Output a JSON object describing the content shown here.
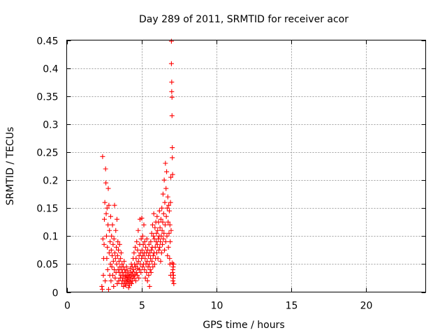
{
  "chart_data": {
    "type": "scatter",
    "title": "Day 289 of 2011, SRMTID for receiver acor",
    "xlabel": "GPS time / hours",
    "ylabel": "SRMTID / TECUs",
    "xlim": [
      0,
      24
    ],
    "ylim": [
      0,
      0.45
    ],
    "xticks": [
      0,
      5,
      10,
      15,
      20
    ],
    "xtick_labels": [
      "0",
      "5",
      "10",
      "15",
      "20"
    ],
    "yticks": [
      0,
      0.05,
      0.1,
      0.15,
      0.2,
      0.25,
      0.3,
      0.35,
      0.4,
      0.45
    ],
    "ytick_labels": [
      "0",
      "0.05",
      "0.1",
      "0.15",
      "0.2",
      "0.25",
      "0.3",
      "0.35",
      "0.4",
      "0.45"
    ],
    "grid": true,
    "marker": "+",
    "color": "#ff0000",
    "series": [
      {
        "name": "SRMTID",
        "points": [
          [
            2.35,
            0.01
          ],
          [
            2.38,
            0.005
          ],
          [
            2.4,
            0.242
          ],
          [
            2.42,
            0.095
          ],
          [
            2.45,
            0.03
          ],
          [
            2.47,
            0.06
          ],
          [
            2.5,
            0.085
          ],
          [
            2.52,
            0.13
          ],
          [
            2.55,
            0.16
          ],
          [
            2.57,
            0.02
          ],
          [
            2.6,
            0.22
          ],
          [
            2.62,
            0.195
          ],
          [
            2.64,
            0.14
          ],
          [
            2.66,
            0.1
          ],
          [
            2.68,
            0.06
          ],
          [
            2.7,
            0.15
          ],
          [
            2.72,
            0.08
          ],
          [
            2.74,
            0.04
          ],
          [
            2.76,
            0.12
          ],
          [
            2.78,
            0.185
          ],
          [
            2.8,
            0.005
          ],
          [
            2.82,
            0.155
          ],
          [
            2.84,
            0.07
          ],
          [
            2.86,
            0.11
          ],
          [
            2.88,
            0.03
          ],
          [
            2.9,
            0.09
          ],
          [
            2.92,
            0.05
          ],
          [
            2.94,
            0.135
          ],
          [
            2.96,
            0.02
          ],
          [
            2.98,
            0.075
          ],
          [
            3.0,
            0.1
          ],
          [
            3.02,
            0.045
          ],
          [
            3.04,
            0.065
          ],
          [
            3.06,
            0.12
          ],
          [
            3.08,
            0.03
          ],
          [
            3.1,
            0.085
          ],
          [
            3.12,
            0.055
          ],
          [
            3.14,
            0.01
          ],
          [
            3.16,
            0.095
          ],
          [
            3.18,
            0.04
          ],
          [
            3.2,
            0.155
          ],
          [
            3.22,
            0.07
          ],
          [
            3.24,
            0.025
          ],
          [
            3.26,
            0.06
          ],
          [
            3.28,
            0.11
          ],
          [
            3.3,
            0.035
          ],
          [
            3.32,
            0.08
          ],
          [
            3.34,
            0.05
          ],
          [
            3.36,
            0.13
          ],
          [
            3.38,
            0.015
          ],
          [
            3.4,
            0.065
          ],
          [
            3.42,
            0.09
          ],
          [
            3.44,
            0.04
          ],
          [
            3.46,
            0.075
          ],
          [
            3.48,
            0.02
          ],
          [
            3.5,
            0.055
          ],
          [
            3.52,
            0.035
          ],
          [
            3.54,
            0.085
          ],
          [
            3.56,
            0.045
          ],
          [
            3.58,
            0.025
          ],
          [
            3.6,
            0.06
          ],
          [
            3.62,
            0.03
          ],
          [
            3.64,
            0.07
          ],
          [
            3.66,
            0.04
          ],
          [
            3.68,
            0.015
          ],
          [
            3.7,
            0.05
          ],
          [
            3.72,
            0.025
          ],
          [
            3.74,
            0.035
          ],
          [
            3.76,
            0.02
          ],
          [
            3.78,
            0.045
          ],
          [
            3.8,
            0.01
          ],
          [
            3.82,
            0.03
          ],
          [
            3.84,
            0.055
          ],
          [
            3.86,
            0.02
          ],
          [
            3.88,
            0.04
          ],
          [
            3.9,
            0.015
          ],
          [
            3.92,
            0.028
          ],
          [
            3.94,
            0.035
          ],
          [
            3.96,
            0.012
          ],
          [
            3.98,
            0.025
          ],
          [
            4.0,
            0.045
          ],
          [
            4.02,
            0.018
          ],
          [
            4.04,
            0.03
          ],
          [
            4.06,
            0.022
          ],
          [
            4.08,
            0.038
          ],
          [
            4.1,
            0.015
          ],
          [
            4.12,
            0.026
          ],
          [
            4.14,
            0.008
          ],
          [
            4.16,
            0.032
          ],
          [
            4.18,
            0.02
          ],
          [
            4.2,
            0.012
          ],
          [
            4.22,
            0.028
          ],
          [
            4.24,
            0.042
          ],
          [
            4.26,
            0.018
          ],
          [
            4.28,
            0.035
          ],
          [
            4.3,
            0.024
          ],
          [
            4.32,
            0.05
          ],
          [
            4.34,
            0.015
          ],
          [
            4.36,
            0.03
          ],
          [
            4.38,
            0.045
          ],
          [
            4.4,
            0.02
          ],
          [
            4.42,
            0.036
          ],
          [
            4.44,
            0.06
          ],
          [
            4.46,
            0.028
          ],
          [
            4.48,
            0.04
          ],
          [
            4.5,
            0.07
          ],
          [
            4.52,
            0.025
          ],
          [
            4.54,
            0.05
          ],
          [
            4.56,
            0.032
          ],
          [
            4.58,
            0.08
          ],
          [
            4.6,
            0.045
          ],
          [
            4.62,
            0.02
          ],
          [
            4.64,
            0.06
          ],
          [
            4.66,
            0.035
          ],
          [
            4.68,
            0.09
          ],
          [
            4.7,
            0.05
          ],
          [
            4.72,
            0.03
          ],
          [
            4.74,
            0.075
          ],
          [
            4.76,
            0.042
          ],
          [
            4.78,
            0.11
          ],
          [
            4.8,
            0.055
          ],
          [
            4.82,
            0.025
          ],
          [
            4.84,
            0.065
          ],
          [
            4.86,
            0.04
          ],
          [
            4.88,
            0.085
          ],
          [
            4.9,
            0.13
          ],
          [
            4.92,
            0.05
          ],
          [
            4.94,
            0.07
          ],
          [
            4.96,
            0.035
          ],
          [
            4.98,
            0.095
          ],
          [
            5.0,
            0.06
          ],
          [
            5.02,
            0.132
          ],
          [
            5.04,
            0.075
          ],
          [
            5.06,
            0.045
          ],
          [
            5.08,
            0.1
          ],
          [
            5.1,
            0.065
          ],
          [
            5.12,
            0.085
          ],
          [
            5.14,
            0.05
          ],
          [
            5.16,
            0.12
          ],
          [
            5.18,
            0.07
          ],
          [
            5.2,
            0.04
          ],
          [
            5.22,
            0.09
          ],
          [
            5.24,
            0.06
          ],
          [
            5.26,
            0.025
          ],
          [
            5.28,
            0.08
          ],
          [
            5.3,
            0.05
          ],
          [
            5.32,
            0.07
          ],
          [
            5.34,
            0.035
          ],
          [
            5.36,
            0.095
          ],
          [
            5.38,
            0.055
          ],
          [
            5.4,
            0.02
          ],
          [
            5.42,
            0.075
          ],
          [
            5.44,
            0.045
          ],
          [
            5.46,
            0.065
          ],
          [
            5.48,
            0.03
          ],
          [
            5.5,
            0.085
          ],
          [
            5.52,
            0.05
          ],
          [
            5.54,
            0.01
          ],
          [
            5.56,
            0.07
          ],
          [
            5.58,
            0.04
          ],
          [
            5.6,
            0.06
          ],
          [
            5.62,
            0.09
          ],
          [
            5.64,
            0.035
          ],
          [
            5.66,
            0.075
          ],
          [
            5.68,
            0.105
          ],
          [
            5.7,
            0.055
          ],
          [
            5.72,
            0.08
          ],
          [
            5.74,
            0.12
          ],
          [
            5.76,
            0.045
          ],
          [
            5.78,
            0.065
          ],
          [
            5.8,
            0.1
          ],
          [
            5.82,
            0.14
          ],
          [
            5.84,
            0.07
          ],
          [
            5.86,
            0.095
          ],
          [
            5.88,
            0.05
          ],
          [
            5.9,
            0.115
          ],
          [
            5.92,
            0.08
          ],
          [
            5.94,
            0.06
          ],
          [
            5.96,
            0.125
          ],
          [
            5.98,
            0.09
          ],
          [
            6.0,
            0.105
          ],
          [
            6.02,
            0.07
          ],
          [
            6.04,
            0.135
          ],
          [
            6.06,
            0.085
          ],
          [
            6.08,
            0.11
          ],
          [
            6.1,
            0.06
          ],
          [
            6.12,
            0.095
          ],
          [
            6.14,
            0.125
          ],
          [
            6.16,
            0.075
          ],
          [
            6.18,
            0.1
          ],
          [
            6.2,
            0.145
          ],
          [
            6.22,
            0.08
          ],
          [
            6.24,
            0.115
          ],
          [
            6.26,
            0.09
          ],
          [
            6.28,
            0.055
          ],
          [
            6.3,
            0.13
          ],
          [
            6.32,
            0.1
          ],
          [
            6.34,
            0.07
          ],
          [
            6.36,
            0.15
          ],
          [
            6.38,
            0.11
          ],
          [
            6.4,
            0.085
          ],
          [
            6.42,
            0.125
          ],
          [
            6.44,
            0.175
          ],
          [
            6.46,
            0.095
          ],
          [
            6.48,
            0.14
          ],
          [
            6.5,
            0.105
          ],
          [
            6.52,
            0.2
          ],
          [
            6.54,
            0.075
          ],
          [
            6.56,
            0.16
          ],
          [
            6.58,
            0.12
          ],
          [
            6.6,
            0.23
          ],
          [
            6.62,
            0.09
          ],
          [
            6.64,
            0.185
          ],
          [
            6.66,
            0.135
          ],
          [
            6.68,
            0.215
          ],
          [
            6.7,
            0.1
          ],
          [
            6.72,
            0.15
          ],
          [
            6.74,
            0.065
          ],
          [
            6.76,
            0.17
          ],
          [
            6.78,
            0.125
          ],
          [
            6.8,
            0.08
          ],
          [
            6.82,
            0.155
          ],
          [
            6.84,
            0.105
          ],
          [
            6.86,
            0.145
          ],
          [
            6.88,
            0.06
          ],
          [
            6.9,
            0.12
          ],
          [
            6.92,
            0.09
          ],
          [
            6.94,
            0.16
          ],
          [
            6.96,
            0.205
          ],
          [
            6.98,
            0.11
          ],
          [
            7.0,
            0.448
          ],
          [
            7.0,
            0.408
          ],
          [
            7.02,
            0.375
          ],
          [
            7.02,
            0.358
          ],
          [
            7.04,
            0.348
          ],
          [
            7.04,
            0.315
          ],
          [
            7.06,
            0.258
          ],
          [
            7.06,
            0.24
          ],
          [
            7.08,
            0.21
          ],
          [
            7.1,
            0.04
          ],
          [
            7.12,
            0.025
          ],
          [
            7.14,
            0.05
          ],
          [
            7.16,
            0.015
          ],
          [
            7.08,
            0.035
          ],
          [
            7.14,
            0.03
          ],
          [
            7.12,
            0.045
          ],
          [
            6.95,
            0.03
          ],
          [
            7.1,
            0.02
          ],
          [
            6.9,
            0.05
          ],
          [
            7.05,
            0.052
          ]
        ]
      }
    ]
  }
}
